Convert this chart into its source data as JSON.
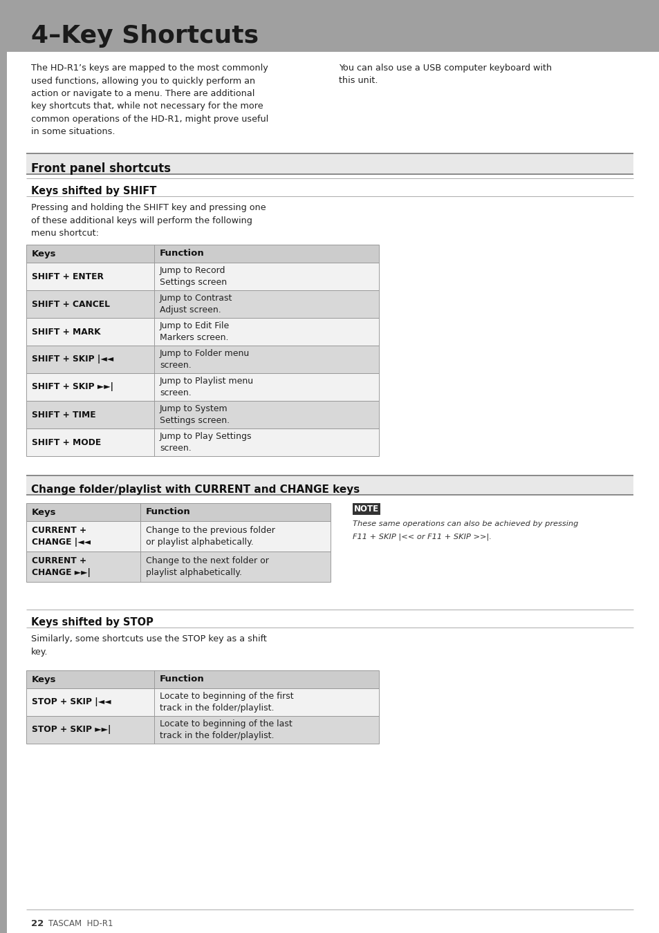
{
  "title": "4–Key Shortcuts",
  "title_bg": "#a0a0a0",
  "title_color": "#1a1a1a",
  "page_bg": "#ffffff",
  "intro_left": "The HD-R1’s keys are mapped to the most commonly\nused functions, allowing you to quickly perform an\naction or navigate to a menu. There are additional\nkey shortcuts that, while not necessary for the more\ncommon operations of the HD-R1, might prove useful\nin some situations.",
  "intro_right": "You can also use a USB computer keyboard with\nthis unit.",
  "section1_title": "Front panel shortcuts",
  "section2_title": "Keys shifted by SHIFT",
  "section2_intro": "Pressing and holding the SHIFT key and pressing one\nof these additional keys will perform the following\nmenu shortcut:",
  "shift_table_header": [
    "Keys",
    "Function"
  ],
  "shift_table_rows": [
    [
      "SHIFT + ENTER",
      "Jump to Record\nSettings screen"
    ],
    [
      "SHIFT + CANCEL",
      "Jump to Contrast\nAdjust screen."
    ],
    [
      "SHIFT + MARK",
      "Jump to Edit File\nMarkers screen."
    ],
    [
      "SHIFT + SKIP |<<",
      "Jump to Folder menu\nscreen."
    ],
    [
      "SHIFT + SKIP >>|",
      "Jump to Playlist menu\nscreen."
    ],
    [
      "SHIFT + TIME",
      "Jump to System\nSettings screen."
    ],
    [
      "SHIFT + MODE",
      "Jump to Play Settings\nscreen."
    ]
  ],
  "shift_table_func_mono": [
    [
      "Record",
      "Settings"
    ],
    [
      "Contrast",
      "Adjust"
    ],
    [
      "Edit File",
      "Markers"
    ],
    [
      "Folder",
      ""
    ],
    [
      "Playlist",
      ""
    ],
    [
      "System",
      "Settings"
    ],
    [
      "Play Settings",
      ""
    ]
  ],
  "section3_title": "Change folder/playlist with CURRENT and CHANGE keys",
  "change_table_header": [
    "Keys",
    "Function"
  ],
  "change_table_rows": [
    [
      "CURRENT +\nCHANGE |<<",
      "Change to the previous folder\nor playlist alphabetically."
    ],
    [
      "CURRENT +\nCHANGE >>|",
      "Change to the next folder or\nplaylist alphabetically."
    ]
  ],
  "note_label": "NOTE",
  "note_text_italic": "These same operations can also be achieved by pressing",
  "note_text_line2": "F11 + SKIP |<< or F11 + SKIP >>|.",
  "section4_title": "Keys shifted by STOP",
  "section4_intro": "Similarly, some shortcuts use the STOP key as a shift\nkey.",
  "stop_table_header": [
    "Keys",
    "Function"
  ],
  "stop_table_rows": [
    [
      "STOP + SKIP |<<",
      "Locate to beginning of the first\ntrack in the folder/playlist."
    ],
    [
      "STOP + SKIP >>|",
      "Locate to beginning of the last\ntrack in the folder/playlist."
    ]
  ],
  "footer_page": "22",
  "footer_brand": "TASCAM  HD-R1",
  "header_col": "#cccccc",
  "row_alt1": "#f2f2f2",
  "row_alt2": "#d8d8d8",
  "table_border": "#999999",
  "sidebar_color": "#a0a0a0"
}
